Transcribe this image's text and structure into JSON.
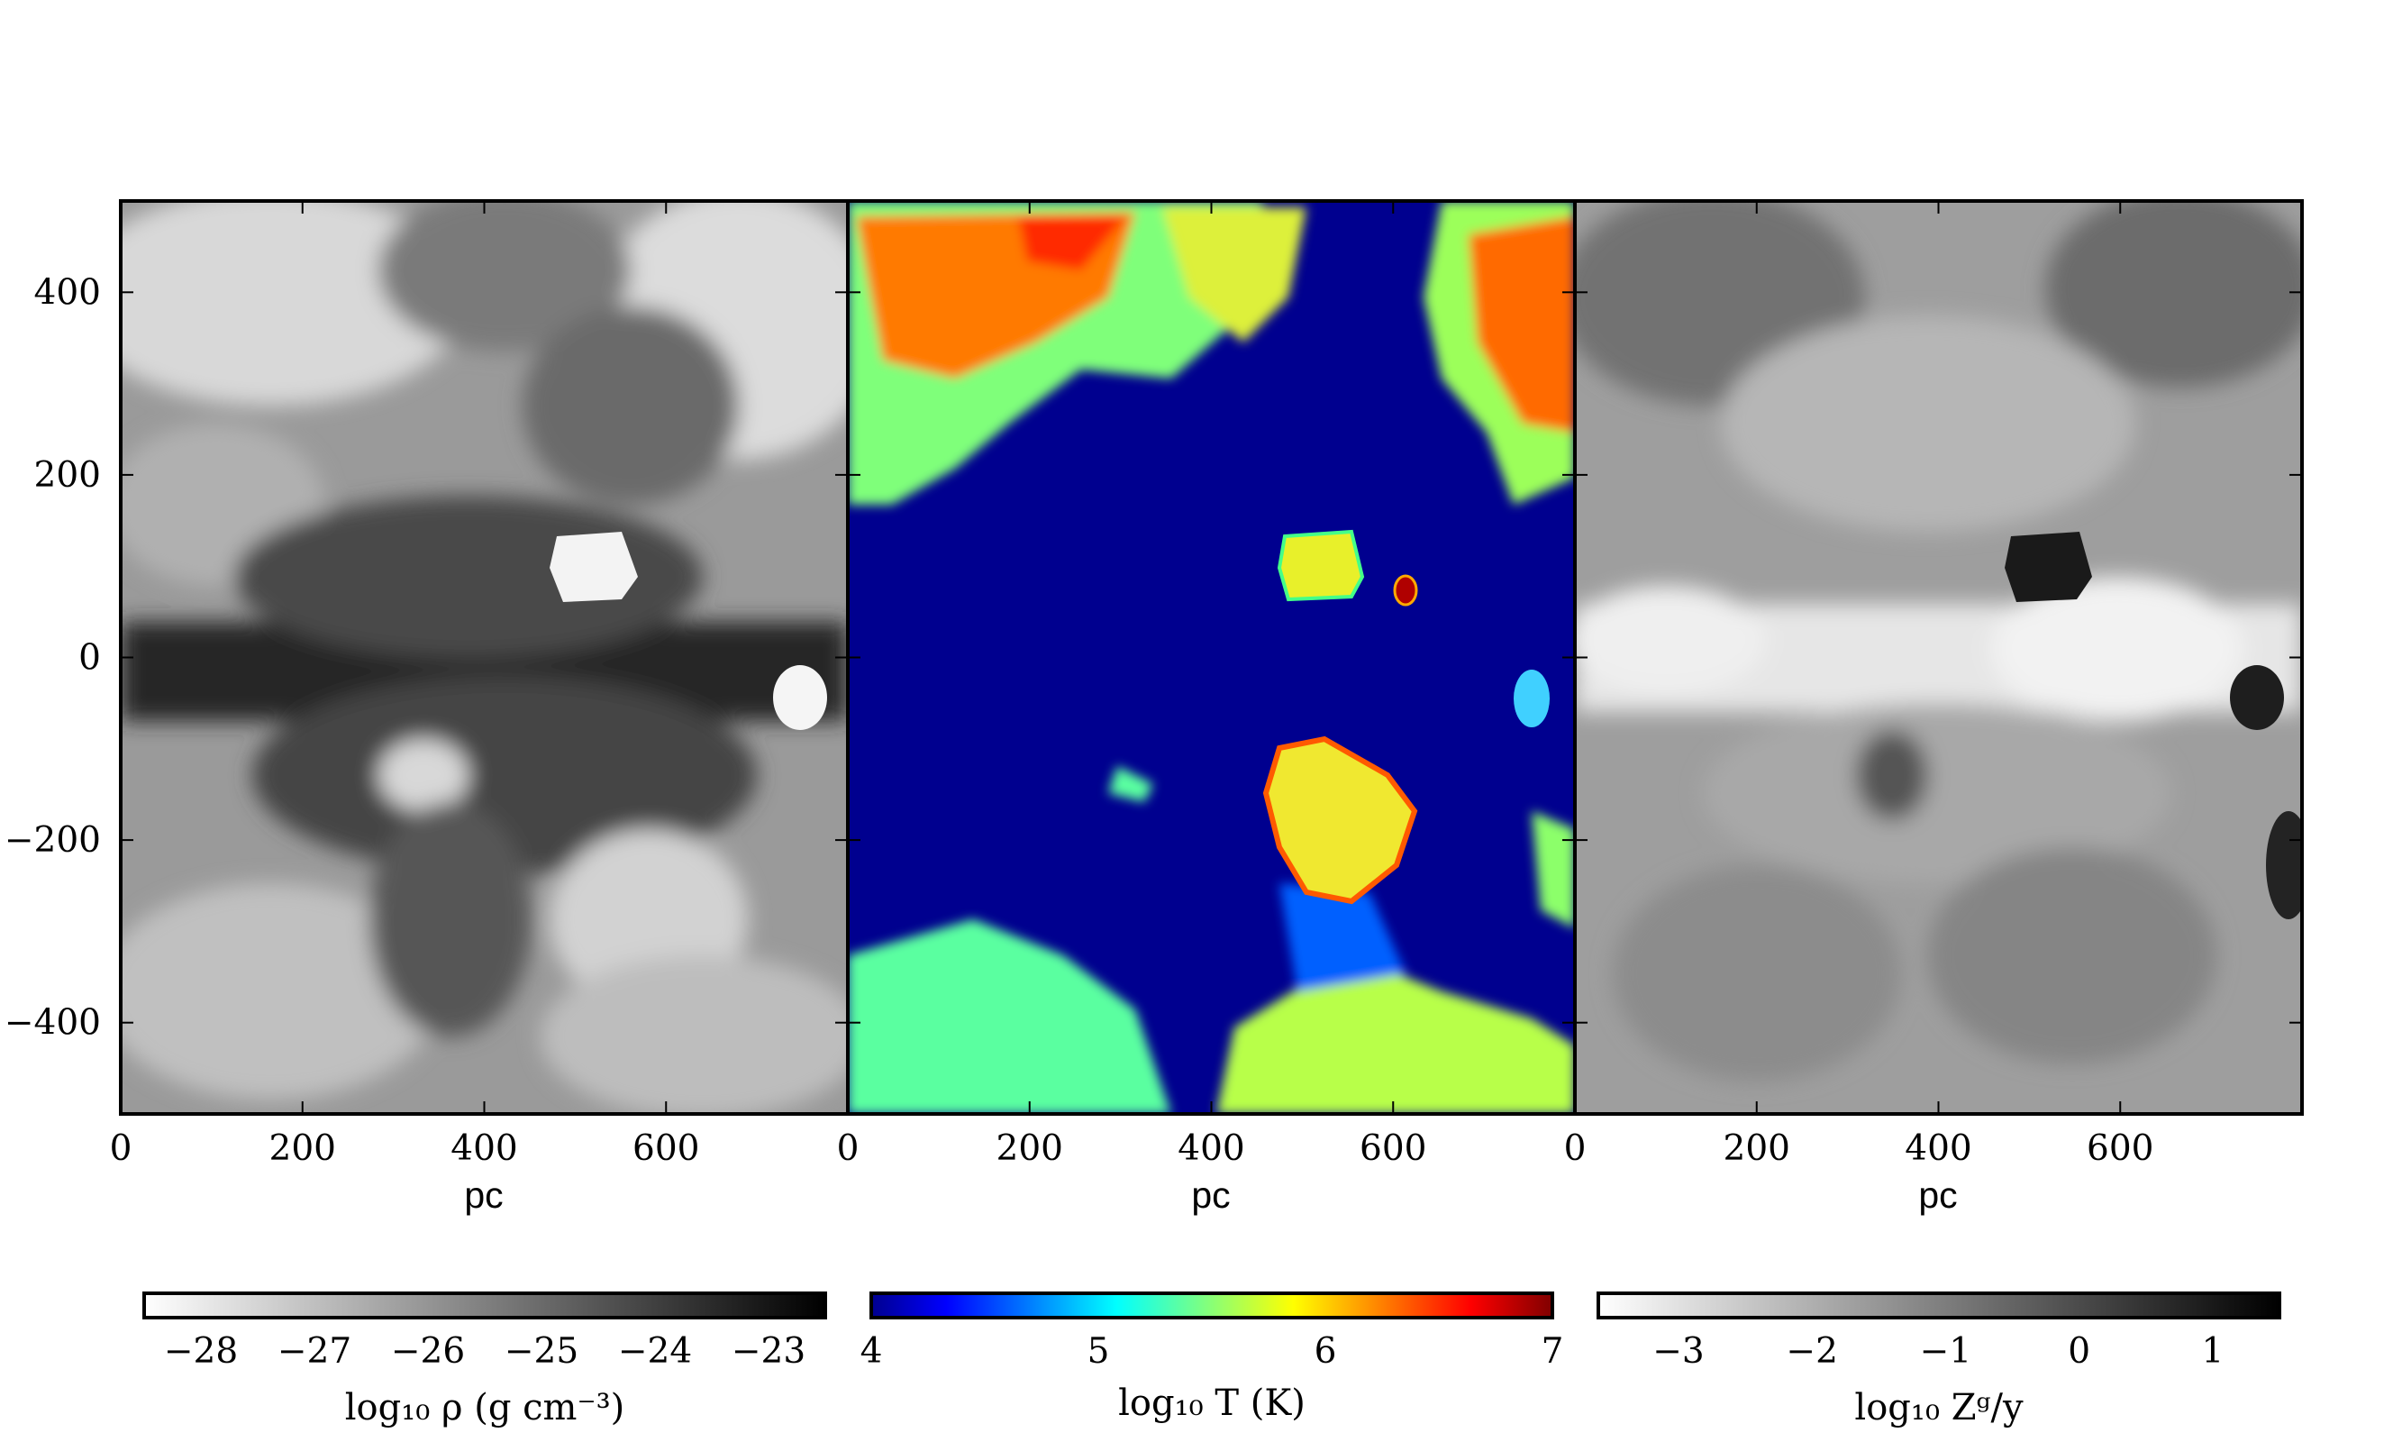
{
  "chart_data": [
    {
      "type": "heatmap",
      "panel": "density",
      "xlabel": "pc",
      "ylabel": "",
      "xlim": [
        0,
        800
      ],
      "ylim": [
        -500,
        500
      ],
      "xticks": [
        0,
        200,
        400,
        600
      ],
      "xtick_labels": [
        "0",
        "200",
        "400",
        "600"
      ],
      "yticks": [
        400,
        200,
        0,
        -200,
        -400
      ],
      "ytick_labels": [
        "400",
        "200",
        "0",
        "−200",
        "−400"
      ],
      "colormap": "gray_r",
      "colorbar": {
        "label": "log₁₀ ρ (g cm⁻³)",
        "range": [
          -28.5,
          -22.5
        ],
        "ticks": [
          -28,
          -27,
          -26,
          -25,
          -24,
          -23
        ],
        "tick_labels": [
          "−28",
          "−27",
          "−26",
          "−25",
          "−24",
          "−23"
        ]
      }
    },
    {
      "type": "heatmap",
      "panel": "temperature",
      "xlabel": "pc",
      "ylabel": "",
      "xlim": [
        0,
        800
      ],
      "ylim": [
        -500,
        500
      ],
      "xticks": [
        0,
        200,
        400,
        600
      ],
      "xtick_labels": [
        "0",
        "200",
        "400",
        "600"
      ],
      "colormap": "jet",
      "colorbar": {
        "label": "log₁₀ T (K)",
        "range": [
          4,
          7
        ],
        "ticks": [
          4,
          5,
          6,
          7
        ],
        "tick_labels": [
          "4",
          "5",
          "6",
          "7"
        ]
      }
    },
    {
      "type": "heatmap",
      "panel": "metallicity",
      "xlabel": "pc",
      "ylabel": "",
      "xlim": [
        0,
        800
      ],
      "ylim": [
        -500,
        500
      ],
      "xticks": [
        0,
        200,
        400,
        600
      ],
      "xtick_labels": [
        "0",
        "200",
        "400",
        "600"
      ],
      "colormap": "gray_r",
      "colorbar": {
        "label": "log₁₀ Zᵍ/y",
        "range": [
          -3.6,
          1.5
        ],
        "ticks": [
          -3,
          -2,
          -1,
          0,
          1
        ],
        "tick_labels": [
          "−3",
          "−2",
          "−1",
          "0",
          "1"
        ]
      }
    }
  ],
  "colors": {
    "jet_low": "#00008f",
    "jet_cyan": "#00ffff",
    "jet_yellow": "#ffff00",
    "jet_high": "#800000"
  }
}
